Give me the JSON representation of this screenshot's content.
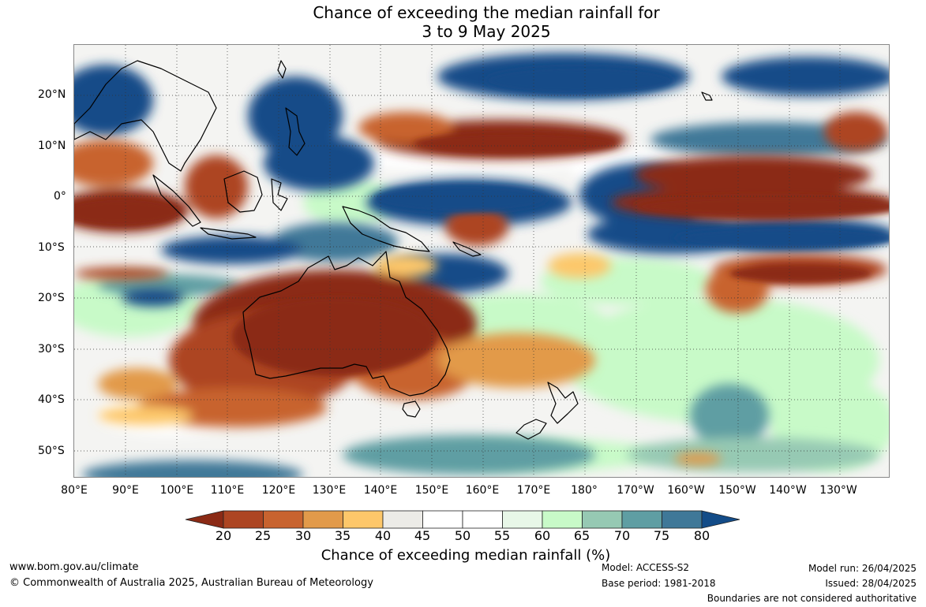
{
  "title": {
    "line1": "Chance of exceeding the median rainfall for",
    "line2": "3 to 9 May 2025"
  },
  "map": {
    "lat_labels": [
      "20°N",
      "10°N",
      "0°",
      "10°S",
      "20°S",
      "30°S",
      "40°S",
      "50°S"
    ],
    "lon_labels": [
      "80°E",
      "90°E",
      "100°E",
      "110°E",
      "120°E",
      "130°E",
      "140°E",
      "150°E",
      "160°E",
      "170°E",
      "180°",
      "170°W",
      "160°W",
      "150°W",
      "140°W",
      "130°W"
    ],
    "graticule": "dotted",
    "coastlines": "black"
  },
  "colorbar": {
    "title": "Chance of exceeding median rainfall (%)",
    "ticks": [
      "20",
      "25",
      "30",
      "35",
      "40",
      "45",
      "50",
      "55",
      "60",
      "65",
      "70",
      "75",
      "80"
    ],
    "colors": [
      "#8b2a15",
      "#ad4522",
      "#c8632f",
      "#e29a4a",
      "#fdc76a",
      "#ecebe7",
      "#ffffff",
      "#ffffff",
      "#e8f7e8",
      "#c8fac8",
      "#96c9b3",
      "#5f9ea3",
      "#3f7898",
      "#134c88"
    ],
    "extend": "both"
  },
  "footer": {
    "website": "www.bom.gov.au/climate",
    "copyright": "© Commonwealth of Australia 2025, Australian Bureau of Meteorology",
    "model": "Model: ACCESS-S2",
    "base_period": "Base period: 1981-2018",
    "model_run": "Model run: 26/04/2025",
    "issued": "Issued: 28/04/2025",
    "disclaimer": "Boundaries are not considered authoritative"
  }
}
